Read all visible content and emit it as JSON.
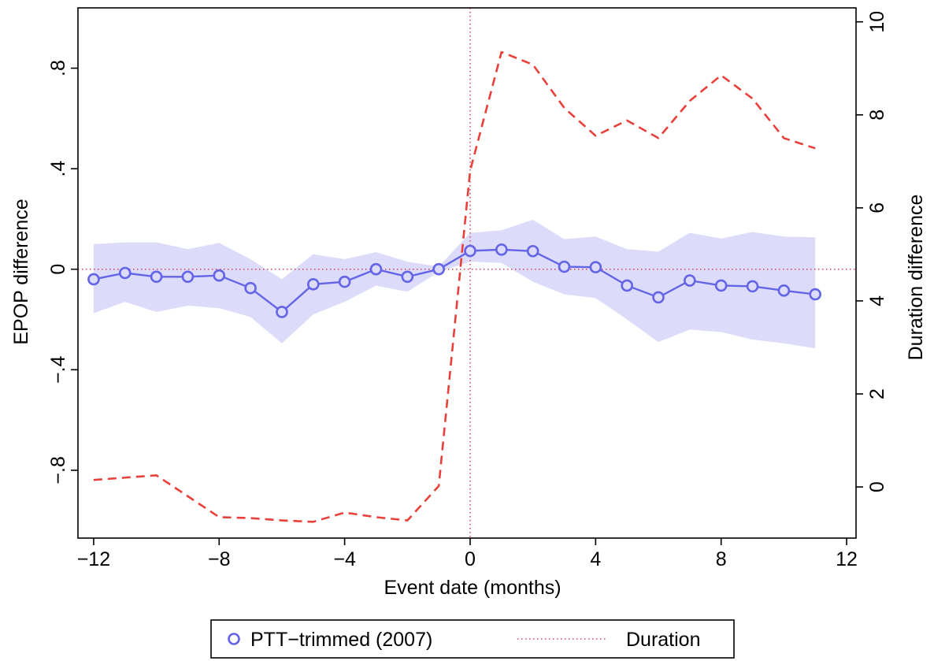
{
  "chart_data": {
    "type": "line",
    "title": "",
    "xlabel": "Event date (months)",
    "ylabel": "EPOP difference",
    "y2label": "Duration difference",
    "xlim": [
      -12.5,
      12.3
    ],
    "ylim": [
      -1.07,
      1.04
    ],
    "y2lim": [
      -1.1,
      10.3
    ],
    "xticks": [
      -12,
      -8,
      -4,
      0,
      4,
      8,
      12
    ],
    "xtick_labels": [
      "−12",
      "−8",
      "−4",
      "0",
      "4",
      "8",
      "12"
    ],
    "yticks": [
      -0.8,
      -0.4,
      0,
      0.4,
      0.8
    ],
    "ytick_labels": [
      "−.8",
      "−.4",
      "0",
      ".4",
      ".8"
    ],
    "y2ticks": [
      0,
      2,
      4,
      6,
      8,
      10
    ],
    "y2tick_labels": [
      "0",
      "2",
      "4",
      "6",
      "8",
      "10"
    ],
    "reference_lines": {
      "x": 0,
      "y": 0
    },
    "grid": false,
    "legend_position": "bottom",
    "colors": {
      "series": "#6464e6",
      "ci_band": "#dcdcfa",
      "duration": "#e8403a",
      "reference": "#d2405a"
    },
    "x": [
      -12,
      -11,
      -10,
      -9,
      -8,
      -7,
      -6,
      -5,
      -4,
      -3,
      -2,
      -1,
      0,
      1,
      2,
      3,
      4,
      5,
      6,
      7,
      8,
      9,
      10,
      11
    ],
    "series": [
      {
        "name": "PTT−trimmed (2007)",
        "axis": "left",
        "values": [
          -0.04,
          -0.015,
          -0.03,
          -0.03,
          -0.025,
          -0.075,
          -0.17,
          -0.06,
          -0.05,
          0.0,
          -0.03,
          0.0,
          0.073,
          0.078,
          0.072,
          0.01,
          0.008,
          -0.065,
          -0.112,
          -0.045,
          -0.065,
          -0.068,
          -0.085,
          -0.1
        ],
        "ci_lower": [
          -0.175,
          -0.13,
          -0.17,
          -0.145,
          -0.155,
          -0.19,
          -0.295,
          -0.18,
          -0.13,
          -0.065,
          -0.09,
          -0.01,
          0.03,
          0.025,
          -0.05,
          -0.1,
          -0.115,
          -0.2,
          -0.29,
          -0.24,
          -0.25,
          -0.28,
          -0.295,
          -0.315
        ],
        "ci_upper": [
          0.1,
          0.107,
          0.107,
          0.08,
          0.105,
          0.04,
          -0.04,
          0.06,
          0.04,
          0.068,
          0.03,
          0.01,
          0.145,
          0.155,
          0.197,
          0.12,
          0.13,
          0.08,
          0.07,
          0.145,
          0.122,
          0.148,
          0.13,
          0.127
        ]
      },
      {
        "name": "Duration",
        "axis": "right",
        "values": [
          0.15,
          0.2,
          0.25,
          -0.2,
          -0.65,
          -0.67,
          -0.72,
          -0.75,
          -0.55,
          -0.65,
          -0.72,
          0.02,
          6.8,
          9.35,
          9.08,
          8.15,
          7.55,
          7.88,
          7.5,
          8.3,
          8.85,
          8.35,
          7.5,
          7.28
        ]
      }
    ],
    "legend": [
      {
        "label": "PTT−trimmed (2007)",
        "marker": "circle"
      },
      {
        "label": "Duration",
        "marker": "dotted-line"
      }
    ]
  }
}
